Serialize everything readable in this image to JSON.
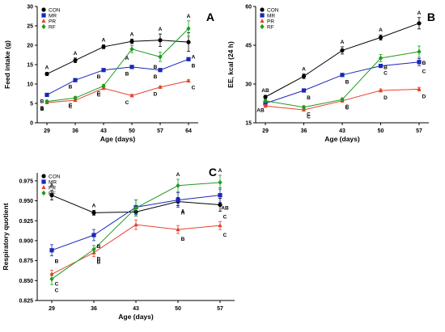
{
  "panels": [
    {
      "letter": "A",
      "ylabel": "Feed intake (g)",
      "xlabel": "Age (days)",
      "yticks": [
        0,
        5,
        10,
        15,
        20,
        25,
        30
      ],
      "ylim": [
        0,
        30
      ],
      "x": [
        29,
        36,
        43,
        50,
        57,
        64
      ],
      "legend_position": "top-left"
    },
    {
      "letter": "B",
      "ylabel": "EE, kcal (24 h)",
      "xlabel": "Age (days)",
      "yticks": [
        15,
        30,
        45,
        60
      ],
      "ylim": [
        15,
        60
      ],
      "x": [
        29,
        36,
        43,
        50,
        57
      ],
      "legend_position": "top-left"
    },
    {
      "letter": "C",
      "ylabel": "Respiratory quotient",
      "xlabel": "Age (days)",
      "yticks": [
        "0.825",
        "0.850",
        "0.875",
        "0.900",
        "0.925",
        "0.950",
        "0.975"
      ],
      "ylim": [
        0.825,
        0.985
      ],
      "x": [
        29,
        36,
        43,
        50,
        57
      ],
      "legend_position": "top-left"
    }
  ],
  "legend": {
    "items": [
      {
        "name": "CON",
        "color": "#000000",
        "marker": "circle"
      },
      {
        "name": "MR",
        "color": "#1a27b8",
        "marker": "square"
      },
      {
        "name": "PR",
        "color": "#e8402c",
        "marker": "triangle"
      },
      {
        "name": "RF",
        "color": "#1e9c1e",
        "marker": "diamond"
      }
    ]
  },
  "chart_data": [
    {
      "type": "line",
      "title": "",
      "panel": "A",
      "xlabel": "Age (days)",
      "ylabel": "Feed intake (g)",
      "x": [
        29,
        36,
        43,
        50,
        57,
        64
      ],
      "ylim": [
        0,
        30
      ],
      "grid": false,
      "legend_position": "top-left",
      "series": [
        {
          "name": "CON",
          "color": "#000000",
          "values": [
            12.6,
            16.1,
            19.6,
            21.0,
            21.3,
            20.8
          ],
          "errors": [
            0.4,
            0.6,
            0.5,
            0.6,
            1.6,
            2.4
          ],
          "letters": [
            "A",
            "A",
            "A",
            "A",
            "A",
            "A"
          ]
        },
        {
          "name": "MR",
          "color": "#1a27b8",
          "values": [
            7.2,
            11.0,
            13.6,
            14.4,
            13.6,
            16.4
          ],
          "errors": [
            0.2,
            0.3,
            0.3,
            0.3,
            0.3,
            0.3
          ],
          "letters": [
            "B",
            "B",
            "B",
            "B",
            "B",
            "B"
          ]
        },
        {
          "name": "PR",
          "color": "#e8402c",
          "values": [
            5.2,
            5.8,
            8.9,
            7.0,
            9.2,
            10.8
          ],
          "errors": [
            0.2,
            0.2,
            0.3,
            0.3,
            0.3,
            0.3
          ],
          "letters": [
            "B",
            "C",
            "C",
            "C",
            "D",
            "C"
          ]
        },
        {
          "name": "RF",
          "color": "#1e9c1e",
          "values": [
            5.5,
            6.4,
            9.5,
            19.0,
            17.0,
            24.3
          ],
          "errors": [
            0.3,
            0.4,
            0.4,
            0.9,
            1.2,
            2.0
          ],
          "letters": [
            "B",
            "C",
            "C",
            "A",
            "B",
            "A"
          ]
        }
      ]
    },
    {
      "type": "line",
      "title": "",
      "panel": "B",
      "xlabel": "Age (days)",
      "ylabel": "EE, kcal (24 h)",
      "x": [
        29,
        36,
        43,
        50,
        57
      ],
      "ylim": [
        15,
        60
      ],
      "grid": false,
      "legend_position": "top-left",
      "series": [
        {
          "name": "CON",
          "color": "#000000",
          "values": [
            25.0,
            33.0,
            43.0,
            48.0,
            53.5
          ],
          "errors": [
            0.6,
            0.9,
            1.4,
            1.0,
            2.2
          ],
          "letters": [
            "AB",
            "A",
            "A",
            "A",
            "A"
          ]
        },
        {
          "name": "MR",
          "color": "#1a27b8",
          "values": [
            22.5,
            27.5,
            33.5,
            37.0,
            38.5
          ],
          "errors": [
            0.5,
            0.6,
            0.6,
            0.6,
            1.4
          ],
          "letters": [
            "AB",
            "B",
            "B",
            "C",
            "C"
          ]
        },
        {
          "name": "PR",
          "color": "#e8402c",
          "values": [
            21.5,
            20.0,
            23.5,
            27.5,
            28.0
          ],
          "errors": [
            0.5,
            0.5,
            0.5,
            0.6,
            0.7
          ],
          "letters": [
            "",
            "C",
            "C",
            "D",
            "D"
          ]
        },
        {
          "name": "RF",
          "color": "#1e9c1e",
          "values": [
            23.5,
            21.0,
            24.0,
            40.0,
            42.5
          ],
          "errors": [
            0.6,
            0.6,
            0.6,
            1.4,
            2.2
          ],
          "letters": [
            "",
            "C",
            "C",
            "B",
            "B"
          ]
        }
      ]
    },
    {
      "type": "line",
      "title": "",
      "panel": "C",
      "xlabel": "Age (days)",
      "ylabel": "Respiratory quotient",
      "x": [
        29,
        36,
        43,
        50,
        57
      ],
      "ylim": [
        0.825,
        0.985
      ],
      "grid": false,
      "legend_position": "top-left",
      "series": [
        {
          "name": "CON",
          "color": "#000000",
          "values": [
            0.957,
            0.935,
            0.936,
            0.949,
            0.945
          ],
          "errors": [
            0.006,
            0.003,
            0.005,
            0.005,
            0.008
          ],
          "letters": [
            "A",
            "A",
            "",
            "A",
            "C"
          ]
        },
        {
          "name": "MR",
          "color": "#1a27b8",
          "values": [
            0.888,
            0.907,
            0.942,
            0.951,
            0.957
          ],
          "errors": [
            0.007,
            0.007,
            0.009,
            0.009,
            0.009
          ],
          "letters": [
            "B",
            "B",
            "",
            "A",
            "AB"
          ]
        },
        {
          "name": "PR",
          "color": "#e8402c",
          "values": [
            0.858,
            0.885,
            0.92,
            0.914,
            0.919
          ],
          "errors": [
            0.005,
            0.005,
            0.006,
            0.005,
            0.005
          ],
          "letters": [
            "C",
            "B",
            "",
            "B",
            "C"
          ]
        },
        {
          "name": "RF",
          "color": "#1e9c1e",
          "values": [
            0.852,
            0.889,
            0.941,
            0.969,
            0.973
          ],
          "errors": [
            0.007,
            0.005,
            0.01,
            0.008,
            0.009
          ],
          "letters": [
            "C",
            "B",
            "",
            "A",
            "A"
          ]
        }
      ]
    }
  ]
}
